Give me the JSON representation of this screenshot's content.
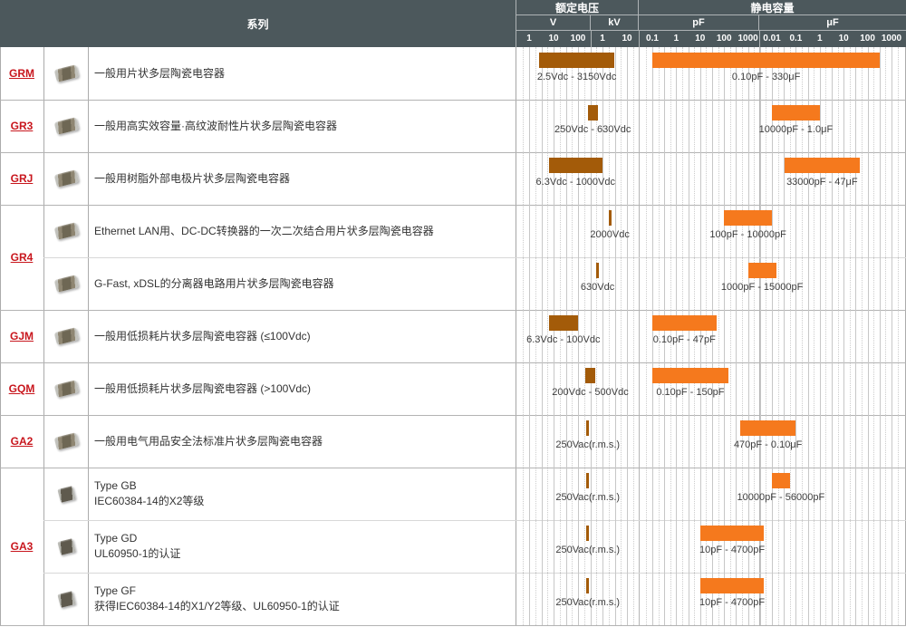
{
  "header": {
    "series": "系列",
    "voltage": "额定电压",
    "capacitance": "静电容量",
    "units": [
      "V",
      "kV",
      "pF",
      "μF"
    ],
    "ticks": {
      "V": [
        "1",
        "10",
        "100"
      ],
      "kV": [
        "1",
        "10"
      ],
      "pF": [
        "0.1",
        "1",
        "10",
        "100",
        "1000"
      ],
      "uF": [
        "0.01",
        "0.1",
        "1",
        "10",
        "100",
        "1000"
      ]
    }
  },
  "colors": {
    "header_bg": "#4C585C",
    "voltage_bar": "#A35B09",
    "capacitance_bar": "#F5791D",
    "series_link": "#C8161D",
    "label_text": "#3d3d3d"
  },
  "chart_data": {
    "type": "bar",
    "subtype": "horizontal_log_range_bars",
    "axes": [
      {
        "name": "rated_voltage",
        "scale": "log",
        "sections": [
          "V",
          "kV"
        ],
        "ticks_v": [
          1,
          10,
          100,
          1000,
          10000
        ]
      },
      {
        "name": "capacitance",
        "scale": "log",
        "sections": [
          "pF",
          "μF"
        ],
        "ticks_pf": [
          0.1,
          1,
          10,
          100,
          1000,
          10000,
          100000,
          1000000,
          10000000,
          100000000,
          1000000000
        ]
      }
    ],
    "groups": [
      {
        "code": "GRM",
        "rows": [
          {
            "desc": [
              "一般用片状多层陶瓷电容器"
            ],
            "chip": "cylinder",
            "voltage": {
              "min_v": 2.5,
              "max_v": 3150,
              "label": "2.5Vdc - 3150Vdc"
            },
            "capacitance": {
              "min_pf": 0.1,
              "max_pf": 330000000,
              "label": "0.10pF - 330μF"
            }
          }
        ]
      },
      {
        "code": "GR3",
        "rows": [
          {
            "desc": [
              "一般用高实效容量·高纹波耐性片状多层陶瓷电容器"
            ],
            "chip": "cylinder",
            "voltage": {
              "min_v": 250,
              "max_v": 630,
              "label": "250Vdc - 630Vdc"
            },
            "capacitance": {
              "min_pf": 10000,
              "max_pf": 1000000,
              "label": "10000pF - 1.0μF"
            }
          }
        ]
      },
      {
        "code": "GRJ",
        "rows": [
          {
            "desc": [
              "一般用树脂外部电极片状多层陶瓷电容器"
            ],
            "chip": "cylinder",
            "voltage": {
              "min_v": 6.3,
              "max_v": 1000,
              "label": "6.3Vdc - 1000Vdc"
            },
            "capacitance": {
              "min_pf": 33000,
              "max_pf": 47000000,
              "label": "33000pF - 47μF"
            }
          }
        ]
      },
      {
        "code": "GR4",
        "rows": [
          {
            "desc": [
              "Ethernet LAN用、DC-DC转换器的一次二次结合用片状多层陶瓷电容器"
            ],
            "chip": "cylinder",
            "voltage": {
              "min_v": 2000,
              "max_v": null,
              "label": "2000Vdc"
            },
            "capacitance": {
              "min_pf": 100,
              "max_pf": 10000,
              "label": "100pF - 10000pF"
            }
          },
          {
            "desc": [
              "G-Fast, xDSL的分离器电路用片状多层陶瓷电容器"
            ],
            "chip": "cylinder",
            "voltage": {
              "min_v": 630,
              "max_v": null,
              "label": "630Vdc"
            },
            "capacitance": {
              "min_pf": 1000,
              "max_pf": 15000,
              "label": "1000pF - 15000pF"
            }
          }
        ]
      },
      {
        "code": "GJM",
        "rows": [
          {
            "desc": [
              "一般用低损耗片状多层陶瓷电容器 (≤100Vdc)"
            ],
            "chip": "cylinder",
            "voltage": {
              "min_v": 6.3,
              "max_v": 100,
              "label": "6.3Vdc - 100Vdc"
            },
            "capacitance": {
              "min_pf": 0.1,
              "max_pf": 47,
              "label": "0.10pF - 47pF"
            }
          }
        ]
      },
      {
        "code": "GQM",
        "rows": [
          {
            "desc": [
              "一般用低损耗片状多层陶瓷电容器 (>100Vdc)"
            ],
            "chip": "cylinder",
            "voltage": {
              "min_v": 200,
              "max_v": 500,
              "label": "200Vdc - 500Vdc"
            },
            "capacitance": {
              "min_pf": 0.1,
              "max_pf": 150,
              "label": "0.10pF - 150pF"
            }
          }
        ]
      },
      {
        "code": "GA2",
        "rows": [
          {
            "desc": [
              "一般用电气用品安全法标准片状多层陶瓷电容器"
            ],
            "chip": "cylinder",
            "voltage": {
              "min_v": 250,
              "max_v": null,
              "label": "250Vac(r.m.s.)"
            },
            "capacitance": {
              "min_pf": 470,
              "max_pf": 100000,
              "label": "470pF - 0.10μF"
            }
          }
        ]
      },
      {
        "code": "GA3",
        "rows": [
          {
            "desc": [
              "Type GB",
              "IEC60384-14的X2等级"
            ],
            "chip": "square",
            "voltage": {
              "min_v": 250,
              "max_v": null,
              "label": "250Vac(r.m.s.)"
            },
            "capacitance": {
              "min_pf": 10000,
              "max_pf": 56000,
              "label": "10000pF - 56000pF"
            }
          },
          {
            "desc": [
              "Type GD",
              "UL60950-1的认证"
            ],
            "chip": "square",
            "voltage": {
              "min_v": 250,
              "max_v": null,
              "label": "250Vac(r.m.s.)"
            },
            "capacitance": {
              "min_pf": 10,
              "max_pf": 4700,
              "label": "10pF - 4700pF"
            }
          },
          {
            "desc": [
              "Type GF",
              "获得IEC60384-14的X1/Y2等级、UL60950-1的认证"
            ],
            "chip": "square",
            "voltage": {
              "min_v": 250,
              "max_v": null,
              "label": "250Vac(r.m.s.)"
            },
            "capacitance": {
              "min_pf": 10,
              "max_pf": 4700,
              "label": "10pF - 4700pF"
            }
          }
        ]
      }
    ]
  }
}
